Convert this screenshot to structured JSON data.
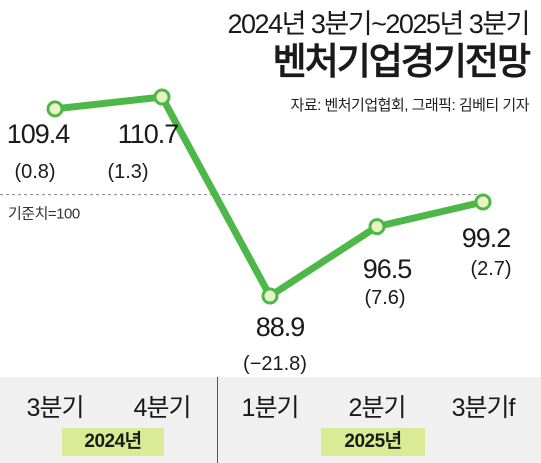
{
  "header": {
    "subtitle": "2024년 3분기~2025년 3분기",
    "title": "벤처기업경기전망",
    "source": "자료: 벤처기업협회, 그래픽: 김베티 기자"
  },
  "baseline_label": "기준치=100",
  "colors": {
    "line": "#4db848",
    "marker_fill": "#e8f4c8",
    "year_bg": "#d9ec95",
    "axis_bg": "#f0f0f0"
  },
  "axis": {
    "quarters": [
      "3분기",
      "4분기",
      "1분기",
      "2분기",
      "3분기f"
    ],
    "years": [
      "2024년",
      "2025년"
    ]
  },
  "chart_data": {
    "type": "line",
    "categories": [
      "3분기",
      "4분기",
      "1분기",
      "2분기",
      "3분기f"
    ],
    "values": [
      109.4,
      110.7,
      88.9,
      96.5,
      99.2
    ],
    "value_labels": [
      "109.4",
      "110.7",
      "88.9",
      "96.5",
      "99.2"
    ],
    "change_labels": [
      "(0.8)",
      "(1.3)",
      "(−21.8)",
      "(7.6)",
      "(2.7)"
    ],
    "baseline": 100,
    "title": "벤처기업경기전망",
    "subtitle": "2024년 3분기~2025년 3분기",
    "xlabel": "",
    "ylabel": "",
    "grid": false,
    "legend": "none"
  }
}
